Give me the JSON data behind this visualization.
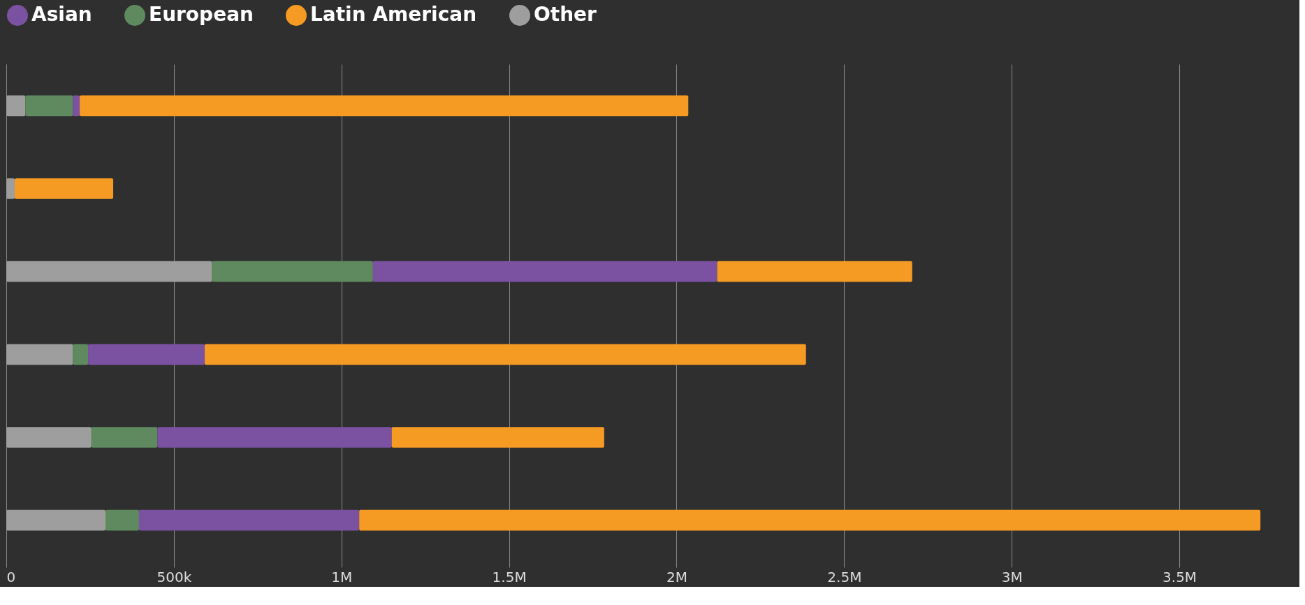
{
  "chart_data": {
    "type": "bar",
    "orientation": "horizontal",
    "stacked": true,
    "categories": [
      null,
      null,
      null,
      null,
      null,
      null
    ],
    "series": [
      {
        "name": "Other",
        "color": "#9e9e9e",
        "values": [
          57000,
          25000,
          614000,
          199000,
          254000,
          296000
        ]
      },
      {
        "name": "European",
        "color": "#5f8a60",
        "values": [
          142000,
          0,
          480000,
          45000,
          197000,
          100000
        ]
      },
      {
        "name": "Asian",
        "color": "#7b52a1",
        "values": [
          20000,
          0,
          1027000,
          348000,
          699000,
          657000
        ]
      },
      {
        "name": "Latin American",
        "color": "#f59a23",
        "values": [
          1816000,
          294000,
          582000,
          1794000,
          634000,
          2689000
        ]
      }
    ],
    "xlim": [
      0,
      3850000
    ],
    "xticks": [
      0,
      {
        "value": 500000,
        "label": "500k"
      },
      {
        "value": 1000000,
        "label": "1M"
      },
      {
        "value": 1500000,
        "label": "1.5M"
      },
      {
        "value": 2000000,
        "label": "2M"
      },
      {
        "value": 2500000,
        "label": "2.5M"
      },
      {
        "value": 3000000,
        "label": "3M"
      },
      {
        "value": 3500000,
        "label": "3.5M"
      }
    ],
    "grid": "x",
    "legend": "top left",
    "tick_labels": "x"
  }
}
